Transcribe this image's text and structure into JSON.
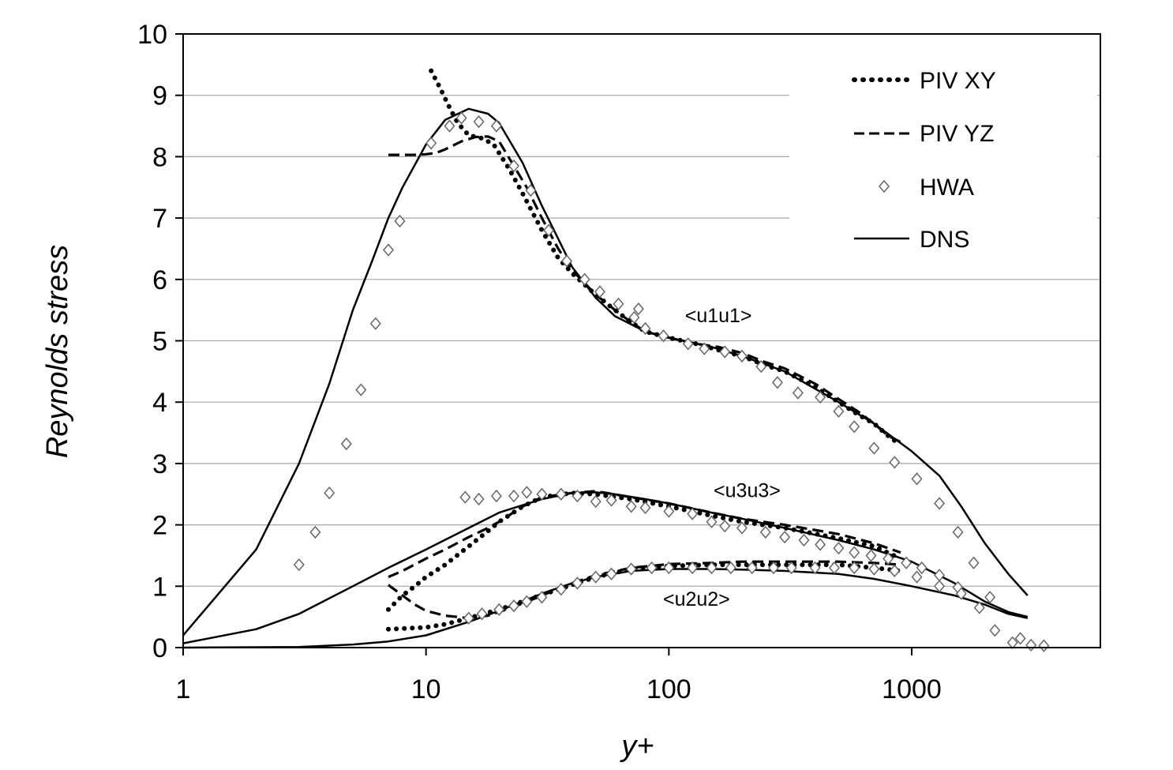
{
  "chart_data": {
    "type": "line",
    "title": "",
    "xlabel": "y+",
    "ylabel": "Reynolds stress",
    "xscale": "log",
    "xlim": [
      1,
      6000
    ],
    "ylim": [
      0,
      10
    ],
    "grid": "horizontal",
    "x_ticks": [
      1,
      10,
      100,
      1000
    ],
    "y_ticks": [
      0,
      1,
      2,
      3,
      4,
      5,
      6,
      7,
      8,
      9,
      10
    ],
    "x_tick_labels": [
      "1",
      "10",
      "100",
      "1000"
    ],
    "y_tick_labels": [
      "0",
      "1",
      "2",
      "3",
      "4",
      "5",
      "6",
      "7",
      "8",
      "9",
      "10"
    ],
    "legend": {
      "position": "top-right",
      "entries": [
        {
          "label": "PIV XY",
          "style": "dotted"
        },
        {
          "label": "PIV YZ",
          "style": "dashed"
        },
        {
          "label": "HWA",
          "style": "diamond"
        },
        {
          "label": "DNS",
          "style": "solid"
        }
      ]
    },
    "annotations": [
      {
        "text": "<u1u1>",
        "x": 160,
        "y": 5.3
      },
      {
        "text": "<u3u3>",
        "x": 210,
        "y": 2.45
      },
      {
        "text": "<u2u2>",
        "x": 130,
        "y": 0.68
      }
    ],
    "series": [
      {
        "name": "DNS <u1u1>",
        "style": "solid",
        "x": [
          1,
          2,
          3,
          4,
          5,
          6,
          7,
          8,
          10,
          12,
          15,
          18,
          20,
          25,
          30,
          40,
          50,
          60,
          80,
          100,
          150,
          200,
          300,
          500,
          700,
          1000,
          1300,
          1600,
          2000,
          2500,
          3000
        ],
        "y": [
          0.2,
          1.6,
          3.0,
          4.3,
          5.5,
          6.3,
          7.0,
          7.5,
          8.2,
          8.6,
          8.78,
          8.7,
          8.55,
          7.9,
          7.2,
          6.2,
          5.7,
          5.4,
          5.15,
          5.05,
          4.9,
          4.75,
          4.5,
          4.0,
          3.65,
          3.2,
          2.8,
          2.3,
          1.7,
          1.2,
          0.85
        ]
      },
      {
        "name": "DNS <u3u3>",
        "style": "solid",
        "x": [
          1,
          2,
          3,
          5,
          7,
          10,
          15,
          20,
          30,
          40,
          50,
          60,
          80,
          100,
          150,
          200,
          300,
          500,
          700,
          1000,
          1500,
          2000,
          2500,
          3000
        ],
        "y": [
          0.07,
          0.3,
          0.55,
          1.0,
          1.3,
          1.6,
          1.95,
          2.2,
          2.42,
          2.52,
          2.53,
          2.5,
          2.42,
          2.35,
          2.2,
          2.1,
          1.95,
          1.75,
          1.6,
          1.4,
          1.05,
          0.75,
          0.58,
          0.5
        ]
      },
      {
        "name": "DNS <u2u2>",
        "style": "solid",
        "x": [
          1,
          3,
          5,
          7,
          10,
          15,
          20,
          30,
          40,
          50,
          70,
          100,
          150,
          200,
          300,
          500,
          700,
          1000,
          1500,
          2000,
          2500,
          3000
        ],
        "y": [
          0.0,
          0.01,
          0.05,
          0.1,
          0.2,
          0.42,
          0.6,
          0.88,
          1.05,
          1.15,
          1.25,
          1.28,
          1.28,
          1.27,
          1.25,
          1.2,
          1.12,
          1.0,
          0.85,
          0.7,
          0.55,
          0.48
        ]
      },
      {
        "name": "PIV XY <u1u1>",
        "style": "dotted",
        "x": [
          10.5,
          11.5,
          12.5,
          13.5,
          15,
          17,
          19,
          22,
          25,
          30,
          35,
          40,
          50,
          60,
          70,
          80,
          100,
          130,
          160,
          200,
          250,
          300,
          400,
          500,
          600,
          700,
          800,
          900
        ],
        "y": [
          9.4,
          9.1,
          8.8,
          8.55,
          8.35,
          8.3,
          8.2,
          7.8,
          7.4,
          6.8,
          6.35,
          6.1,
          5.75,
          5.5,
          5.3,
          5.15,
          5.05,
          4.95,
          4.85,
          4.75,
          4.6,
          4.5,
          4.25,
          4.0,
          3.8,
          3.65,
          3.45,
          3.3
        ]
      },
      {
        "name": "PIV YZ <u1u1>",
        "style": "dashed",
        "x": [
          7,
          8,
          9,
          10,
          11,
          12,
          14,
          16,
          18,
          20,
          23,
          26,
          30,
          35,
          40,
          50,
          60,
          70,
          80,
          100,
          130,
          160,
          200,
          250,
          300,
          400,
          500,
          600,
          700,
          800,
          900
        ],
        "y": [
          8.03,
          8.03,
          8.03,
          8.04,
          8.06,
          8.12,
          8.25,
          8.32,
          8.33,
          8.25,
          7.85,
          7.5,
          7.0,
          6.5,
          6.15,
          5.75,
          5.5,
          5.3,
          5.15,
          5.05,
          4.95,
          4.9,
          4.8,
          4.65,
          4.55,
          4.3,
          4.05,
          3.85,
          3.65,
          3.45,
          3.35
        ]
      },
      {
        "name": "PIV XY <u3u3>",
        "style": "dotted",
        "x": [
          7,
          8,
          9,
          10,
          12,
          15,
          18,
          20,
          25,
          30,
          40,
          50,
          70,
          100,
          150,
          200,
          300,
          500,
          700,
          900
        ],
        "y": [
          0.62,
          0.85,
          1.0,
          1.15,
          1.35,
          1.65,
          1.9,
          2.05,
          2.3,
          2.45,
          2.52,
          2.5,
          2.42,
          2.3,
          2.15,
          2.05,
          1.95,
          1.78,
          1.65,
          1.45
        ]
      },
      {
        "name": "PIV YZ <u3u3>",
        "style": "dashed",
        "x": [
          7,
          8,
          10,
          12,
          15,
          18,
          20,
          25,
          30,
          40,
          50,
          70,
          100,
          150,
          200,
          300,
          500,
          700,
          900
        ],
        "y": [
          1.15,
          1.25,
          1.45,
          1.6,
          1.8,
          1.95,
          2.05,
          2.3,
          2.45,
          2.52,
          2.55,
          2.45,
          2.35,
          2.2,
          2.1,
          2.0,
          1.85,
          1.7,
          1.55
        ]
      },
      {
        "name": "PIV XY <u2u2>",
        "style": "dotted",
        "x": [
          7,
          8,
          10,
          12,
          15,
          18,
          20,
          25,
          30,
          40,
          50,
          70,
          100,
          150,
          200,
          300,
          500,
          700,
          900
        ],
        "y": [
          0.3,
          0.31,
          0.33,
          0.38,
          0.48,
          0.57,
          0.62,
          0.75,
          0.86,
          1.02,
          1.15,
          1.28,
          1.33,
          1.35,
          1.35,
          1.35,
          1.35,
          1.3,
          1.25
        ]
      },
      {
        "name": "PIV YZ <u2u2>",
        "style": "dashed",
        "x": [
          7,
          8,
          9,
          10,
          12,
          15,
          18,
          20,
          25,
          30,
          40,
          50,
          70,
          100,
          150,
          200,
          300,
          500,
          700,
          900
        ],
        "y": [
          1.02,
          0.85,
          0.7,
          0.6,
          0.52,
          0.48,
          0.52,
          0.58,
          0.72,
          0.85,
          1.05,
          1.18,
          1.3,
          1.36,
          1.38,
          1.4,
          1.4,
          1.4,
          1.38,
          1.35
        ]
      },
      {
        "name": "HWA <u1u1>",
        "style": "diamond",
        "x": [
          3.0,
          3.5,
          4.0,
          4.7,
          5.4,
          6.2,
          7.0,
          7.8,
          10.5,
          12.5,
          14.0,
          16.5,
          19.5,
          23.0,
          27.0,
          32.0,
          38.0,
          45.0,
          52.0,
          62.0,
          72.0,
          75.0,
          80.0,
          95.0,
          120.0,
          140.0,
          170.0,
          200.0,
          240.0,
          280.0,
          340.0,
          420.0,
          500.0,
          580.0,
          700.0,
          850.0,
          1050.0,
          1300.0,
          1550.0,
          1800.0,
          2100.0
        ],
        "y": [
          1.35,
          1.88,
          2.52,
          3.32,
          4.2,
          5.28,
          6.48,
          6.95,
          8.22,
          8.5,
          8.63,
          8.57,
          8.5,
          7.85,
          7.45,
          6.8,
          6.3,
          6.0,
          5.8,
          5.6,
          5.38,
          5.52,
          5.2,
          5.08,
          4.95,
          4.87,
          4.82,
          4.75,
          4.58,
          4.32,
          4.15,
          4.08,
          3.85,
          3.6,
          3.25,
          3.02,
          2.75,
          2.35,
          1.88,
          1.38,
          0.82
        ]
      },
      {
        "name": "HWA <u3u3>",
        "style": "diamond",
        "x": [
          14.5,
          16.5,
          19.5,
          23.0,
          26.0,
          30.0,
          36.0,
          42.0,
          50.0,
          58.0,
          70.0,
          80.0,
          100.0,
          125.0,
          150.0,
          170.0,
          200.0,
          250.0,
          300.0,
          360.0,
          420.0,
          500.0,
          580.0,
          680.0,
          800.0,
          950.0,
          1100.0,
          1300.0,
          1550.0
        ],
        "y": [
          2.45,
          2.42,
          2.47,
          2.47,
          2.53,
          2.5,
          2.5,
          2.47,
          2.38,
          2.4,
          2.3,
          2.28,
          2.22,
          2.18,
          2.05,
          1.98,
          1.95,
          1.88,
          1.8,
          1.75,
          1.68,
          1.62,
          1.55,
          1.5,
          1.45,
          1.38,
          1.3,
          1.18,
          0.98
        ]
      },
      {
        "name": "HWA <u2u2>",
        "style": "diamond",
        "x": [
          15.0,
          17.0,
          20.0,
          23.0,
          26.0,
          30.0,
          36.0,
          42.0,
          50.0,
          58.0,
          70.0,
          85.0,
          100.0,
          125.0,
          150.0,
          180.0,
          220.0,
          270.0,
          320.0,
          400.0,
          480.0,
          580.0,
          700.0,
          850.0,
          1050.0,
          1300.0,
          1600.0,
          1900.0,
          2200.0,
          2600.0,
          2800.0,
          3100.0,
          3500.0
        ],
        "y": [
          0.48,
          0.55,
          0.62,
          0.68,
          0.75,
          0.82,
          0.95,
          1.05,
          1.15,
          1.2,
          1.28,
          1.3,
          1.3,
          1.3,
          1.3,
          1.3,
          1.3,
          1.3,
          1.3,
          1.3,
          1.3,
          1.3,
          1.28,
          1.25,
          1.15,
          1.0,
          0.88,
          0.65,
          0.28,
          0.08,
          0.15,
          0.04,
          0.03
        ]
      }
    ]
  }
}
